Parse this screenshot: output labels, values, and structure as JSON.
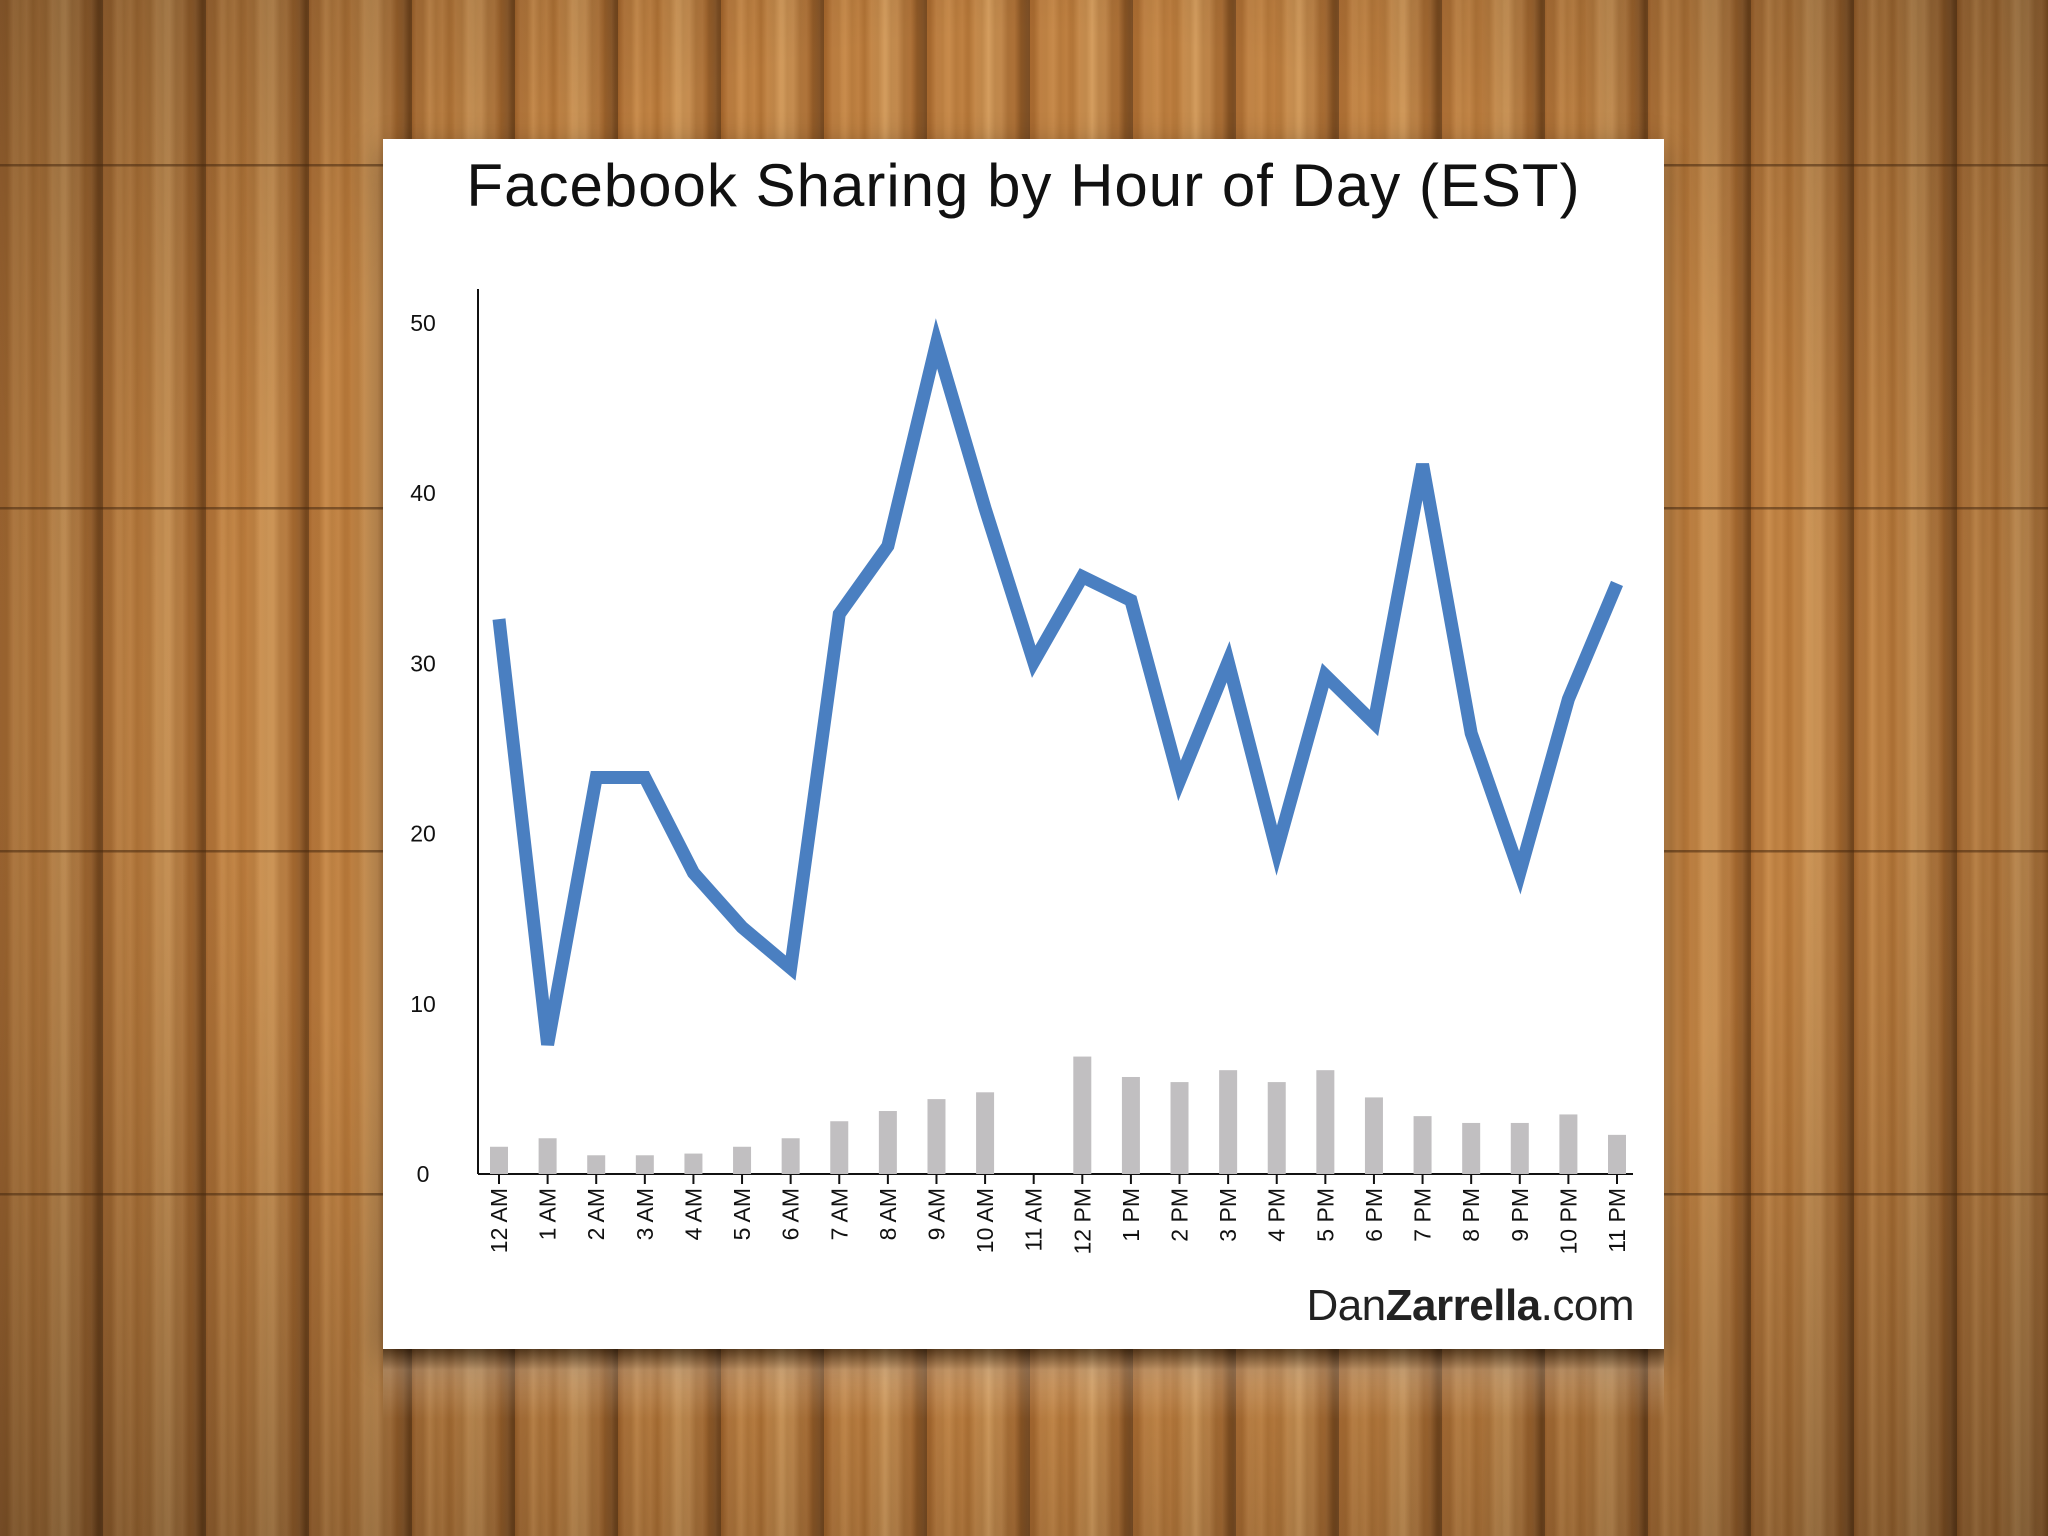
{
  "chart_data": {
    "type": "line",
    "title": "Facebook Sharing by Hour of Day (EST)",
    "xlabel": "",
    "ylabel": "",
    "categories": [
      "12 AM",
      "1 AM",
      "2 AM",
      "3 AM",
      "4 AM",
      "5 AM",
      "6 AM",
      "7 AM",
      "8 AM",
      "9 AM",
      "10 AM",
      "11 AM",
      "12 PM",
      "1 PM",
      "2 PM",
      "3 PM",
      "4 PM",
      "5 PM",
      "6 PM",
      "7 PM",
      "8 PM",
      "9 PM",
      "10 PM",
      "11 PM"
    ],
    "series": [
      {
        "type": "line",
        "color": "#4a7fc1",
        "values": [
          32.6,
          7.6,
          23.3,
          23.3,
          17.7,
          14.5,
          12.1,
          32.9,
          36.9,
          48.8,
          39.1,
          30.1,
          35.1,
          33.7,
          23.1,
          30.1,
          19.0,
          29.3,
          26.5,
          41.7,
          25.9,
          17.7,
          27.9,
          34.7
        ]
      },
      {
        "type": "bar",
        "color": "#c1bfc1",
        "values": [
          1.6,
          2.1,
          1.1,
          1.1,
          1.2,
          1.6,
          2.1,
          3.1,
          3.7,
          4.4,
          4.8,
          0,
          6.9,
          5.7,
          5.4,
          6.1,
          5.4,
          6.1,
          4.5,
          3.4,
          3.0,
          3.0,
          3.5,
          2.3
        ]
      }
    ],
    "ylim": [
      0,
      52
    ],
    "yticks": [
      0,
      10,
      20,
      30,
      40,
      50
    ],
    "grid": false,
    "legend": "none"
  },
  "watermark": {
    "prefix": "Dan",
    "bold": "Zarrella",
    "suffix": ".com"
  }
}
